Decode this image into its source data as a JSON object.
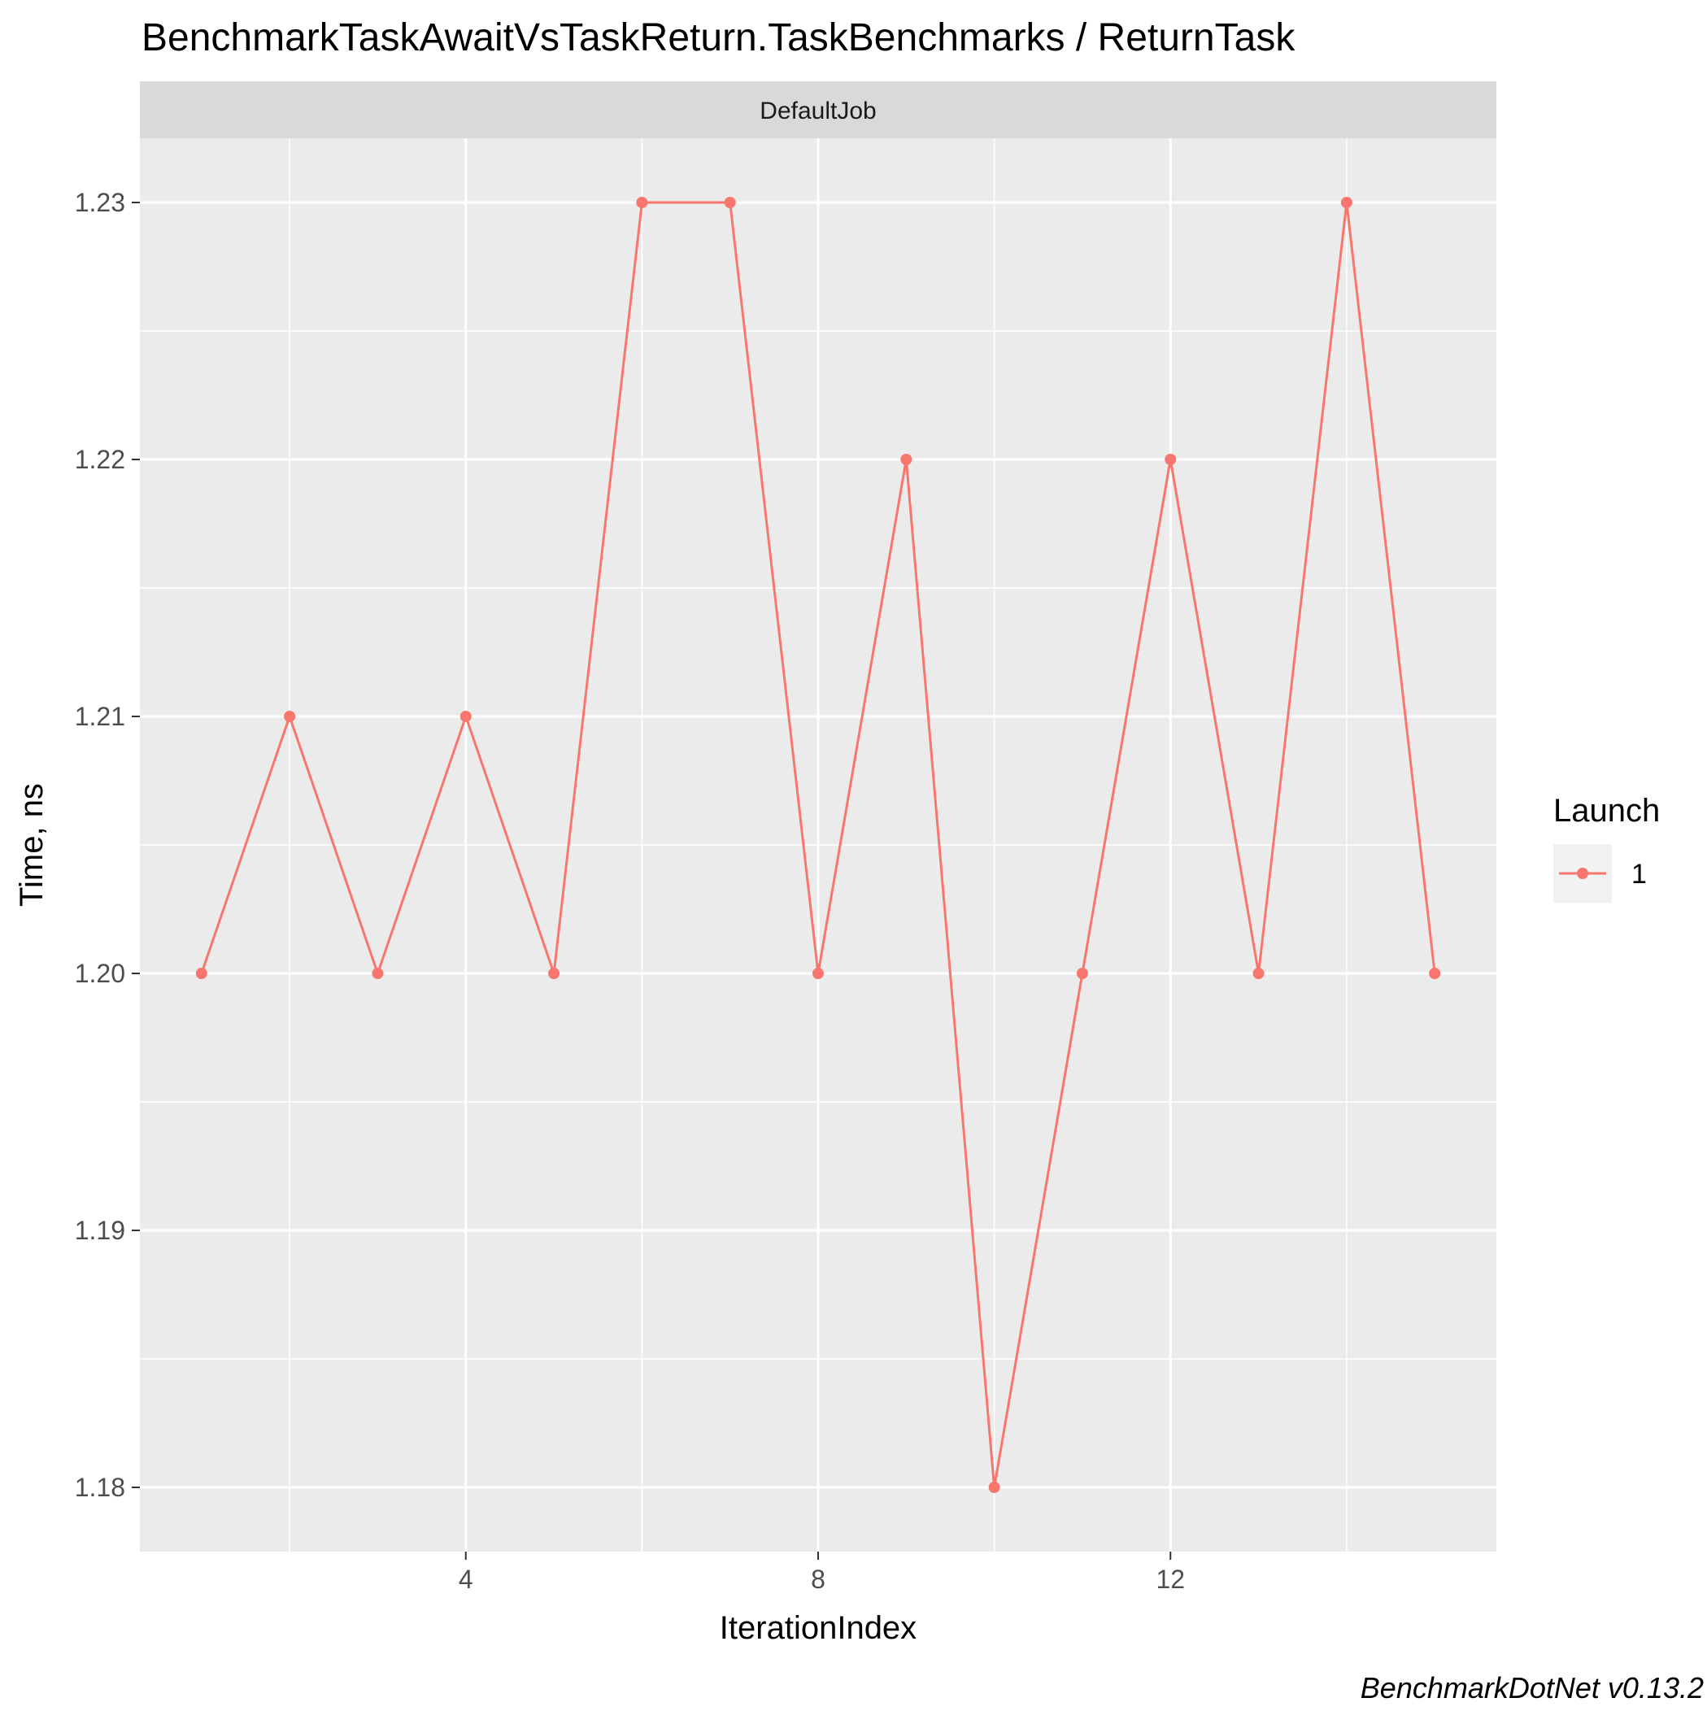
{
  "colors": {
    "panel_bg": "#EBEBEB",
    "strip_bg": "#D9D9D9",
    "grid": "#FFFFFF",
    "series": "#F8766D",
    "legend_key_bg": "#F2F2F2",
    "text": "#000000",
    "tick_text": "#4D4D4D"
  },
  "chart_data": {
    "type": "line",
    "title": "BenchmarkTaskAwaitVsTaskReturn.TaskBenchmarks / ReturnTask",
    "facet_label": "DefaultJob",
    "xlabel": "IterationIndex",
    "ylabel": "Time, ns",
    "xlim": [
      0.3,
      15.7
    ],
    "ylim": [
      1.1775,
      1.2325
    ],
    "x_ticks": [
      4,
      8,
      12
    ],
    "x_tick_labels": [
      "4",
      "8",
      "12"
    ],
    "y_ticks": [
      1.18,
      1.19,
      1.2,
      1.21,
      1.22,
      1.23
    ],
    "y_tick_labels": [
      "1.18",
      "1.19",
      "1.20",
      "1.21",
      "1.22",
      "1.23"
    ],
    "grid": true,
    "legend": {
      "title": "Launch",
      "position": "right",
      "entries": [
        "1"
      ]
    },
    "series": [
      {
        "name": "1",
        "x": [
          1,
          2,
          3,
          4,
          5,
          6,
          7,
          8,
          9,
          10,
          11,
          12,
          13,
          14,
          15
        ],
        "y": [
          1.2,
          1.21,
          1.2,
          1.21,
          1.2,
          1.23,
          1.23,
          1.2,
          1.22,
          1.18,
          1.2,
          1.22,
          1.2,
          1.23,
          1.2
        ]
      }
    ],
    "caption": "BenchmarkDotNet v0.13.2"
  }
}
